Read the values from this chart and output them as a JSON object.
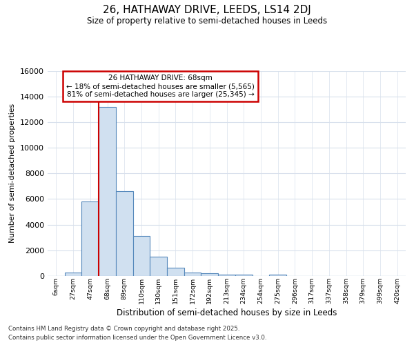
{
  "title1": "26, HATHAWAY DRIVE, LEEDS, LS14 2DJ",
  "title2": "Size of property relative to semi-detached houses in Leeds",
  "xlabel": "Distribution of semi-detached houses by size in Leeds",
  "ylabel": "Number of semi-detached properties",
  "bar_labels": [
    "6sqm",
    "27sqm",
    "47sqm",
    "68sqm",
    "89sqm",
    "110sqm",
    "130sqm",
    "151sqm",
    "172sqm",
    "192sqm",
    "213sqm",
    "234sqm",
    "254sqm",
    "275sqm",
    "296sqm",
    "317sqm",
    "337sqm",
    "358sqm",
    "379sqm",
    "399sqm",
    "420sqm"
  ],
  "bar_values": [
    0,
    270,
    5800,
    13200,
    6600,
    3100,
    1500,
    620,
    270,
    200,
    130,
    100,
    0,
    90,
    0,
    0,
    0,
    0,
    0,
    0,
    0
  ],
  "bar_color": "#d0e0f0",
  "bar_edge_color": "#5588bb",
  "red_line_bar_index": 3,
  "annotation_title": "26 HATHAWAY DRIVE: 68sqm",
  "annotation_line1": "← 18% of semi-detached houses are smaller (5,565)",
  "annotation_line2": "81% of semi-detached houses are larger (25,345) →",
  "annotation_box_color": "#ffffff",
  "annotation_box_edge": "#cc0000",
  "ylim": [
    0,
    16000
  ],
  "yticks": [
    0,
    2000,
    4000,
    6000,
    8000,
    10000,
    12000,
    14000,
    16000
  ],
  "footer1": "Contains HM Land Registry data © Crown copyright and database right 2025.",
  "footer2": "Contains public sector information licensed under the Open Government Licence v3.0.",
  "bg_color": "#ffffff",
  "plot_bg_color": "#ffffff",
  "grid_color": "#d8e0ec"
}
